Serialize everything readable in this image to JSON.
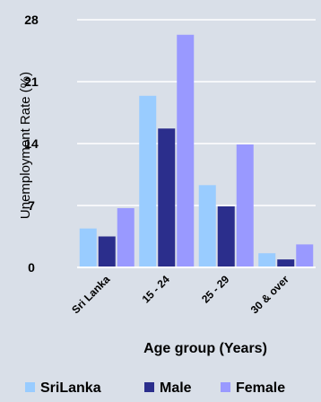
{
  "chart_data": {
    "type": "bar",
    "categories": [
      "Sri Lanka",
      "15 - 24",
      "25 - 29",
      "30 & over"
    ],
    "series": [
      {
        "name": "SriLanka",
        "values": [
          4.4,
          19.4,
          9.3,
          1.6
        ],
        "color": "#99ccff"
      },
      {
        "name": "Male",
        "values": [
          3.5,
          15.7,
          6.9,
          0.9
        ],
        "color": "#2b2e8c"
      },
      {
        "name": "Female",
        "values": [
          6.7,
          26.3,
          13.9,
          2.6
        ],
        "color": "#9999ff"
      }
    ],
    "title": "",
    "xlabel": "Age group (Years)",
    "ylabel": "Unemployment Rate (%)",
    "ylim": [
      0,
      28
    ],
    "yticks": [
      "0",
      "7",
      "14",
      "21",
      "28"
    ],
    "grid": true,
    "legend": "bottom"
  }
}
